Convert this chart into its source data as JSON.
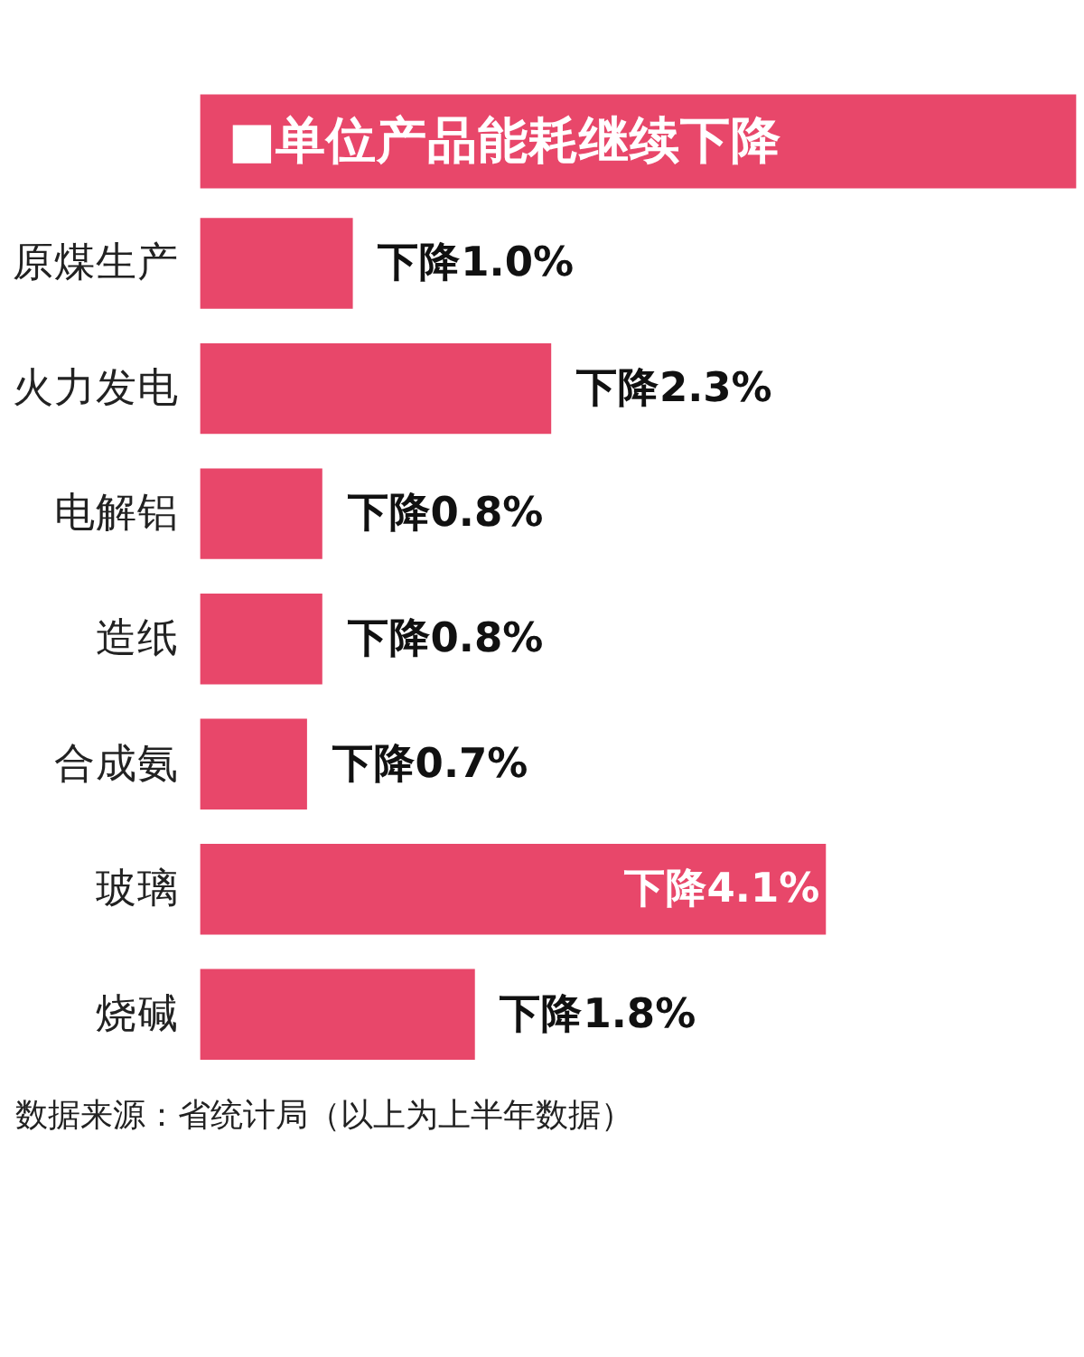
{
  "chart_data": {
    "type": "bar",
    "orientation": "horizontal",
    "title": "■单位产品能耗继续下降",
    "categories": [
      "原煤生产",
      "火力发电",
      "电解铝",
      "造纸",
      "合成氨",
      "玻璃",
      "烧碱"
    ],
    "values": [
      1.0,
      2.3,
      0.8,
      0.8,
      0.7,
      4.1,
      1.8
    ],
    "value_labels": [
      "下降1.0%",
      "下降2.3%",
      "下降0.8%",
      "下降0.8%",
      "下降0.7%",
      "下降4.1%",
      "下降1.8%"
    ],
    "color": "#e8476a",
    "annotations": [
      "数据来源：省统计局（以上为上半年数据）"
    ]
  }
}
